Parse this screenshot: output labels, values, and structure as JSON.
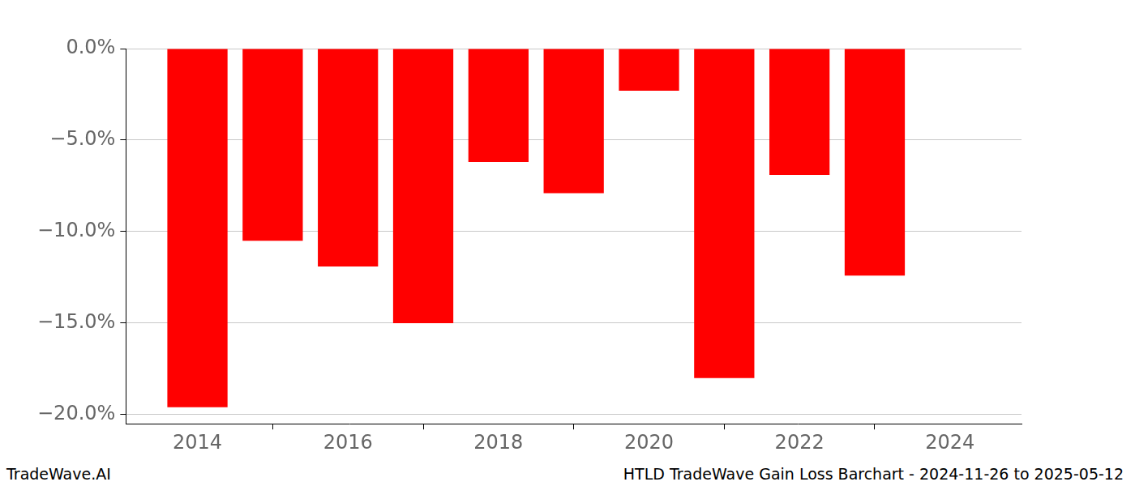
{
  "chart_data": {
    "type": "bar",
    "title": "HTLD TradeWave Gain Loss Barchart - 2024-11-26 to 2025-05-12",
    "annotations": [
      "TradeWave.AI"
    ],
    "x": [
      2014,
      2015,
      2016,
      2017,
      2018,
      2019,
      2020,
      2021,
      2022,
      2023
    ],
    "values": [
      -19.6,
      -10.5,
      -11.9,
      -15.0,
      -6.2,
      -7.9,
      -2.3,
      -18.0,
      -6.9,
      -12.4
    ],
    "color": "#ff0000",
    "xlim": [
      2013.05,
      2024.95
    ],
    "xticks": [
      2014,
      2016,
      2018,
      2020,
      2022,
      2024
    ],
    "ylim": [
      -20.5,
      0
    ],
    "yticks": [
      {
        "value": -20,
        "label": "−20.0%"
      },
      {
        "value": -15,
        "label": "−15.0%"
      },
      {
        "value": -10,
        "label": "−10.0%"
      },
      {
        "value": -5,
        "label": "−5.0%"
      },
      {
        "value": 0,
        "label": "0.0%"
      }
    ],
    "grid": true
  }
}
